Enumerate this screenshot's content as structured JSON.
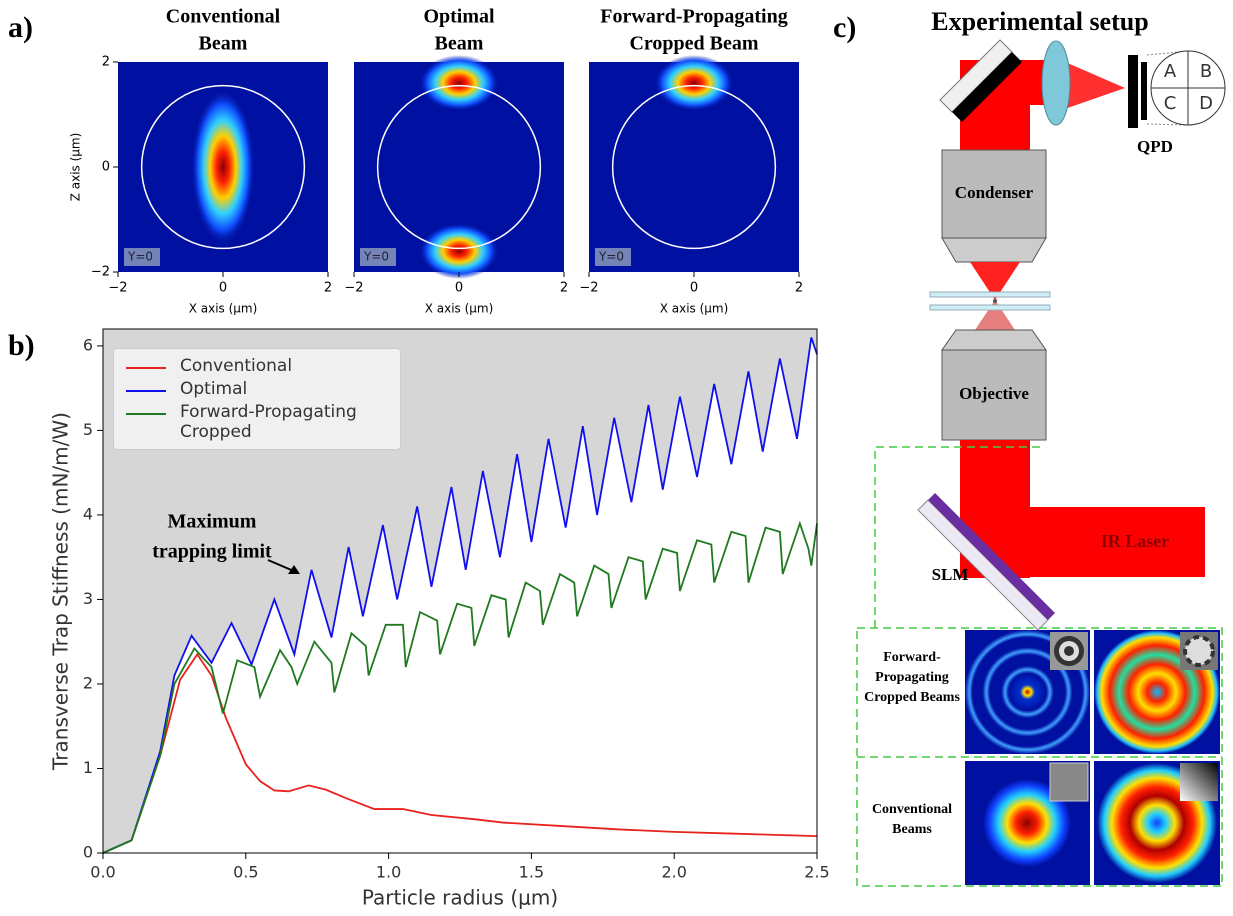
{
  "panel_labels": [
    "a)",
    "b)",
    "c)"
  ],
  "panel_a": {
    "titles": [
      [
        "Conventional",
        "Beam"
      ],
      [
        "Optimal",
        "Beam"
      ],
      [
        "Forward-Propagating",
        "Cropped Beam"
      ]
    ],
    "xlabel": "X axis (μm)",
    "ylabel": "Z axis (μm)",
    "inset_label": "Y=0",
    "ticks": [
      {
        "value": -2,
        "label": "−2"
      },
      0,
      2
    ]
  },
  "chart_data": {
    "type": "line",
    "ylabel": "Transverse Trap Stiffness (mN/m/W)",
    "xlabel": "Particle radius (μm)",
    "annotation": [
      "Maximum",
      "trapping limit"
    ],
    "legend": "upper left",
    "xlim": [
      0,
      2.5
    ],
    "ylim": [
      0,
      6.2
    ],
    "xticks": [
      {
        "value": 0,
        "label": "0.0"
      },
      0.5,
      {
        "value": 1,
        "label": "1.0"
      },
      1.5,
      {
        "value": 2,
        "label": "2.0"
      },
      2.5
    ],
    "yticks": [
      0,
      1,
      2,
      3,
      4,
      5,
      6
    ],
    "series": [
      {
        "name": "Conventional",
        "color": "#e8221c",
        "x": [
          0,
          0.1,
          0.2,
          0.27,
          0.33,
          0.38,
          0.43,
          0.5,
          0.55,
          0.6,
          0.65,
          0.72,
          0.78,
          0.85,
          0.95,
          1.05,
          1.15,
          1.3,
          1.4,
          1.6,
          1.8,
          2.0,
          2.2,
          2.4,
          2.5
        ],
        "values": [
          0,
          0.15,
          1.15,
          2.05,
          2.35,
          2.1,
          1.6,
          1.05,
          0.85,
          0.74,
          0.73,
          0.8,
          0.75,
          0.65,
          0.52,
          0.52,
          0.45,
          0.4,
          0.36,
          0.32,
          0.28,
          0.25,
          0.23,
          0.21,
          0.2
        ]
      },
      {
        "name": "Optimal",
        "color": "#1010ee",
        "x": [
          0,
          0.1,
          0.2,
          0.25,
          0.31,
          0.38,
          0.45,
          0.52,
          0.6,
          0.67,
          0.73,
          0.8,
          0.86,
          0.91,
          0.98,
          1.03,
          1.1,
          1.15,
          1.22,
          1.27,
          1.33,
          1.39,
          1.45,
          1.5,
          1.56,
          1.62,
          1.68,
          1.73,
          1.79,
          1.85,
          1.91,
          1.96,
          2.02,
          2.08,
          2.14,
          2.2,
          2.26,
          2.31,
          2.37,
          2.43,
          2.48,
          2.5
        ],
        "values": [
          0,
          0.15,
          1.2,
          2.1,
          2.57,
          2.25,
          2.72,
          2.23,
          3.0,
          2.35,
          3.35,
          2.55,
          3.62,
          2.8,
          3.88,
          3.0,
          4.1,
          3.15,
          4.33,
          3.35,
          4.52,
          3.5,
          4.72,
          3.68,
          4.9,
          3.85,
          5.05,
          4.0,
          5.15,
          4.15,
          5.3,
          4.3,
          5.4,
          4.45,
          5.55,
          4.6,
          5.7,
          4.75,
          5.85,
          4.9,
          6.1,
          5.9
        ]
      },
      {
        "name": "Forward-Propagating Cropped",
        "color": "#1f7a1f",
        "x": [
          0,
          0.1,
          0.2,
          0.25,
          0.32,
          0.38,
          0.42,
          0.47,
          0.53,
          0.55,
          0.62,
          0.66,
          0.68,
          0.74,
          0.8,
          0.81,
          0.87,
          0.92,
          0.93,
          0.99,
          1.05,
          1.06,
          1.11,
          1.17,
          1.18,
          1.24,
          1.29,
          1.3,
          1.36,
          1.41,
          1.42,
          1.48,
          1.53,
          1.54,
          1.6,
          1.65,
          1.66,
          1.72,
          1.77,
          1.78,
          1.84,
          1.89,
          1.9,
          1.96,
          2.01,
          2.02,
          2.08,
          2.13,
          2.14,
          2.2,
          2.25,
          2.26,
          2.32,
          2.37,
          2.38,
          2.44,
          2.47,
          2.48,
          2.5
        ],
        "values": [
          0,
          0.15,
          1.15,
          2.0,
          2.42,
          2.2,
          1.65,
          2.28,
          2.2,
          1.85,
          2.4,
          2.2,
          2.0,
          2.5,
          2.25,
          1.9,
          2.6,
          2.45,
          2.1,
          2.7,
          2.7,
          2.2,
          2.85,
          2.75,
          2.35,
          2.95,
          2.9,
          2.45,
          3.05,
          3.0,
          2.55,
          3.2,
          3.1,
          2.7,
          3.3,
          3.2,
          2.8,
          3.4,
          3.3,
          2.9,
          3.5,
          3.45,
          3.0,
          3.6,
          3.55,
          3.1,
          3.7,
          3.65,
          3.2,
          3.8,
          3.75,
          3.2,
          3.85,
          3.8,
          3.3,
          3.9,
          3.6,
          3.4,
          3.9
        ]
      }
    ]
  },
  "panel_c": {
    "title": "Experimental setup",
    "qpd": "QPD",
    "quadrants": [
      "A",
      "B",
      "C",
      "D"
    ],
    "condenser": "Condenser",
    "objective": "Objective",
    "slm": "SLM",
    "laser": "IR Laser",
    "rows": [
      "Forward-Propagating Cropped Beams",
      "Conventional Beams"
    ]
  }
}
